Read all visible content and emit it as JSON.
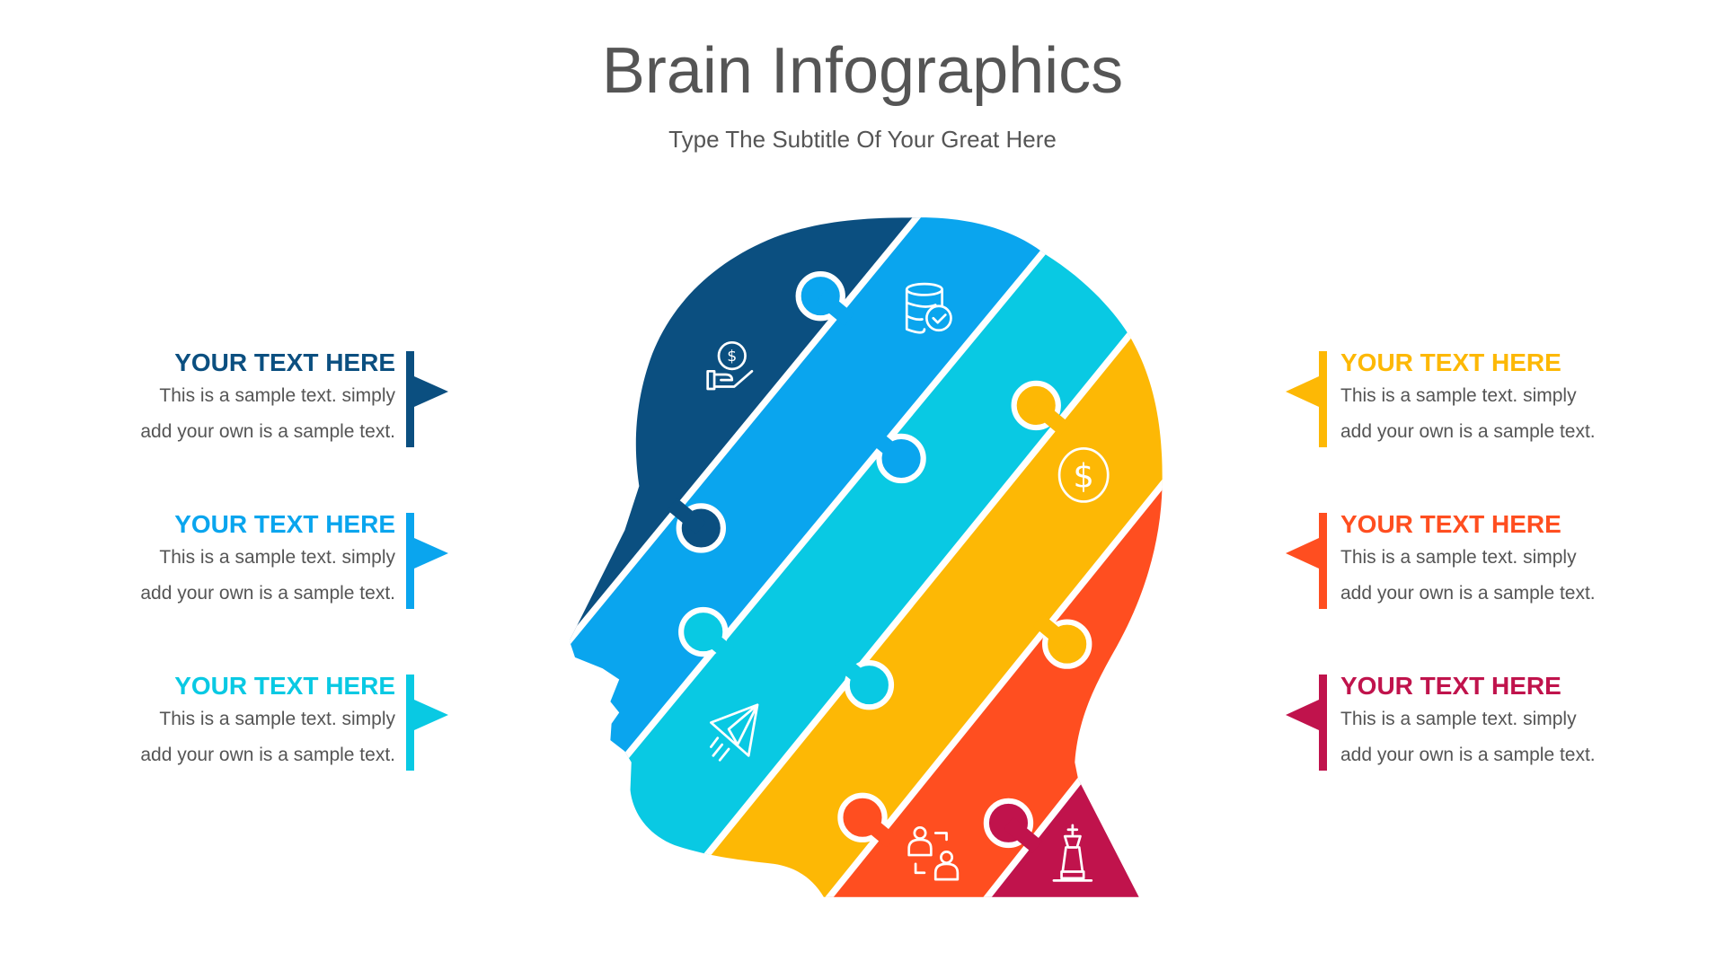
{
  "title": "Brain Infographics",
  "subtitle": "Type The Subtitle Of Your Great Here",
  "colors": {
    "navy": "#0B4F80",
    "blue": "#0AA5EE",
    "cyan": "#09C9E3",
    "yellow": "#FDB805",
    "orange": "#FF4E20",
    "magenta": "#C0134C"
  },
  "left_items": [
    {
      "heading": "YOUR TEXT HERE",
      "line1": "This is a sample text. simply",
      "line2": "add your own is a sample text.",
      "color": "#0B4F80"
    },
    {
      "heading": "YOUR TEXT HERE",
      "line1": "This is a sample text. simply",
      "line2": "add your own is a sample text.",
      "color": "#0AA5EE"
    },
    {
      "heading": "YOUR TEXT HERE",
      "line1": "This is a sample text. simply",
      "line2": "add your own is a sample text.",
      "color": "#09C9E3"
    }
  ],
  "right_items": [
    {
      "heading": "YOUR TEXT HERE",
      "line1": "This is a sample text. simply",
      "line2": "add your own is a sample text.",
      "color": "#FDB805"
    },
    {
      "heading": "YOUR TEXT HERE",
      "line1": "This is a sample text. simply",
      "line2": "add your own is a sample text.",
      "color": "#FF4E20"
    },
    {
      "heading": "YOUR TEXT HERE",
      "line1": "This is a sample text. simply",
      "line2": "add your own is a sample text.",
      "color": "#C0134C"
    }
  ],
  "head_pieces": [
    {
      "color": "#0B4F80",
      "icon": "hand-coin-icon"
    },
    {
      "color": "#0AA5EE",
      "icon": "database-check-icon"
    },
    {
      "color": "#09C9E3",
      "icon": "paper-plane-icon"
    },
    {
      "color": "#FDB805",
      "icon": "dollar-coin-icon"
    },
    {
      "color": "#FF4E20",
      "icon": "people-exchange-icon"
    },
    {
      "color": "#C0134C",
      "icon": "chess-king-icon"
    }
  ]
}
